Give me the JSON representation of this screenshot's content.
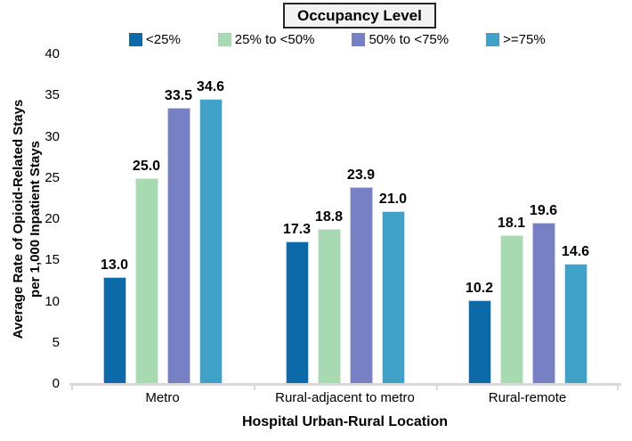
{
  "chart_data": {
    "type": "bar",
    "legend_title": "Occupancy Level",
    "categories": [
      "Metro",
      "Rural-adjacent to metro",
      "Rural-remote"
    ],
    "series": [
      {
        "name": "<25%",
        "color": "#0c6aa9",
        "edge": "#bcd7e8",
        "values": [
          13.0,
          17.3,
          10.2
        ]
      },
      {
        "name": "25% to <50%",
        "color": "#a8dab2",
        "edge": "#dcefe0",
        "values": [
          25.0,
          18.8,
          18.1
        ]
      },
      {
        "name": "50% to <75%",
        "color": "#7780c4",
        "edge": "#c9cce9",
        "values": [
          33.5,
          23.9,
          19.6
        ]
      },
      {
        "name": ">=75%",
        "color": "#41a2c9",
        "edge": "#c9e4f0",
        "values": [
          34.6,
          21.0,
          14.6
        ]
      }
    ],
    "xlabel": "Hospital Urban-Rural Location",
    "ylabel_lines": [
      "Average Rate of Opioid-Related Stays",
      "per 1,000 Inpatient Stays"
    ],
    "ylim": [
      0,
      40
    ],
    "ytick_step": 5,
    "grid": false,
    "legend_position": "top",
    "value_label_decimals": 1
  },
  "colors": {
    "axis_line": "#d9d9d9",
    "text": "#000000",
    "legend_box_bg": "#f2f2f2",
    "legend_box_border": "#262626"
  }
}
